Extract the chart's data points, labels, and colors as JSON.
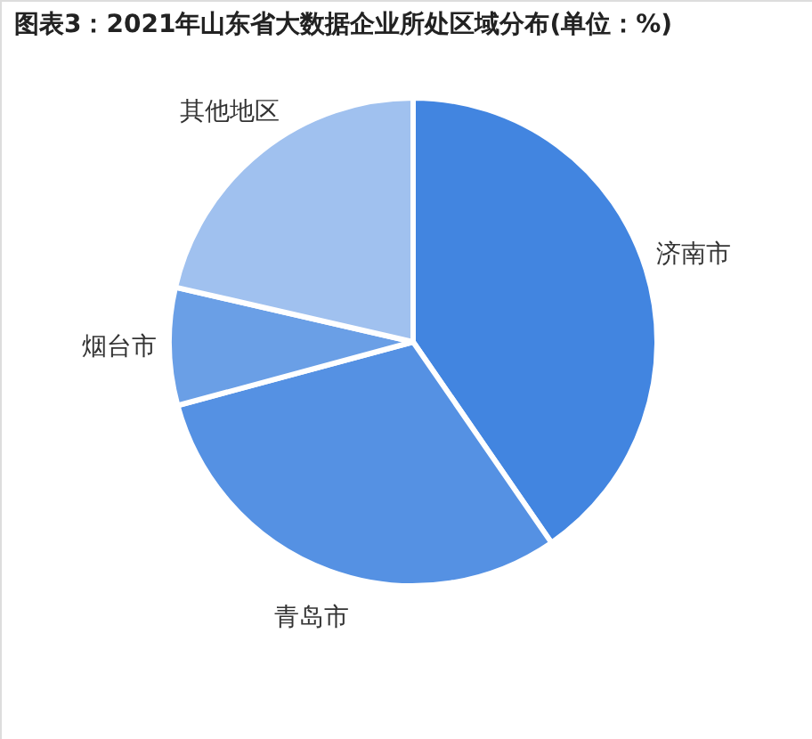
{
  "chart_data": {
    "type": "pie",
    "title": "图表3：2021年山东省大数据企业所处区域分布(单位：%)",
    "categories": [
      "济南市",
      "青岛市",
      "烟台市",
      "其他地区"
    ],
    "values": [
      40.4,
      30.4,
      7.8,
      21.4
    ],
    "colors": [
      "#4285e0",
      "#5591e3",
      "#6a9fe6",
      "#a0c1ef"
    ]
  }
}
